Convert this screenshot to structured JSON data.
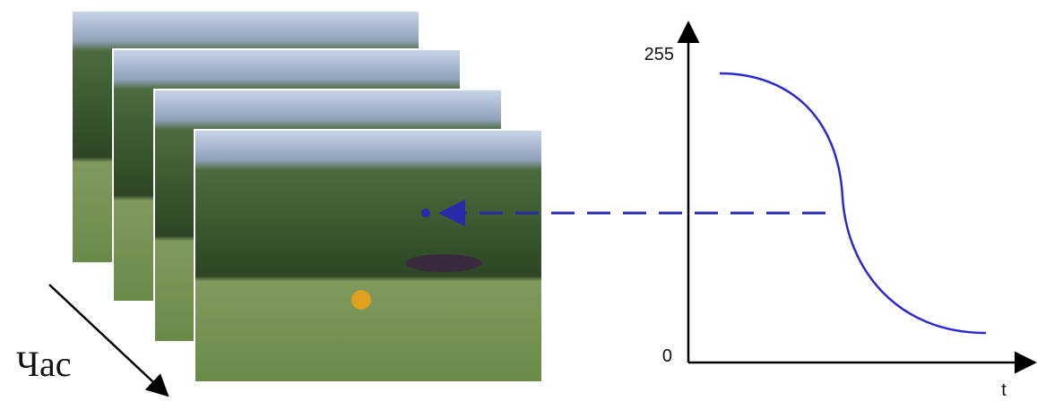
{
  "time_label": "Час",
  "plot": {
    "y_max_label": "255",
    "y_min_label": "0",
    "x_axis_label": "t"
  }
}
